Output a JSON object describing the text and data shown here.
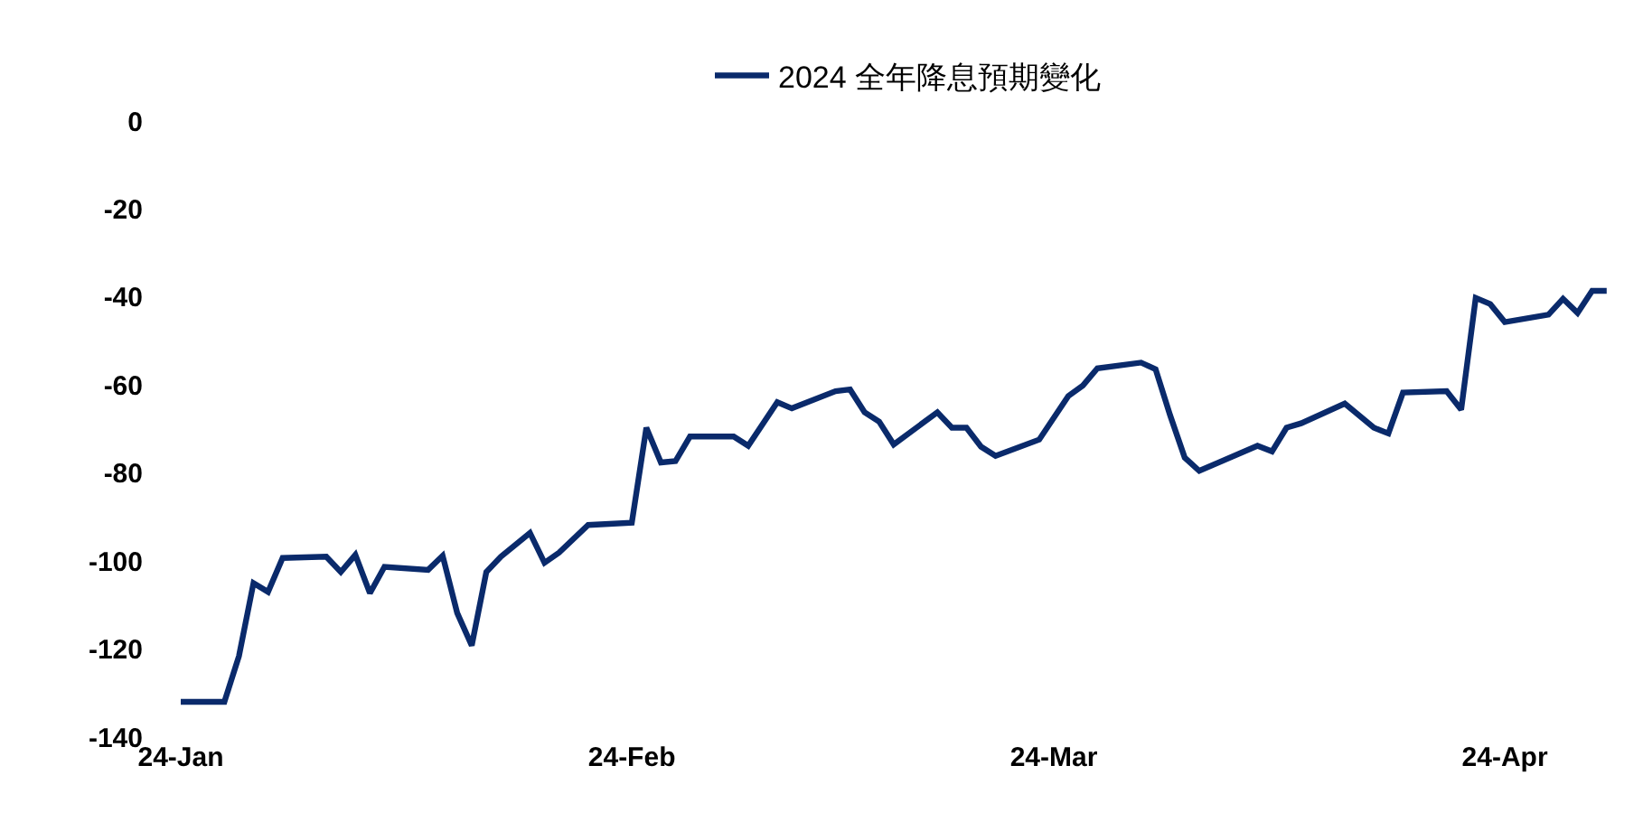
{
  "chart_data": {
    "type": "line",
    "x": [
      "2024-01-01",
      "2024-01-04",
      "2024-01-05",
      "2024-01-06",
      "2024-01-07",
      "2024-01-08",
      "2024-01-11",
      "2024-01-12",
      "2024-01-13",
      "2024-01-14",
      "2024-01-15",
      "2024-01-18",
      "2024-01-19",
      "2024-01-20",
      "2024-01-21",
      "2024-01-22",
      "2024-01-23",
      "2024-01-25",
      "2024-01-26",
      "2024-01-27",
      "2024-01-29",
      "2024-02-01",
      "2024-02-02",
      "2024-02-03",
      "2024-02-04",
      "2024-02-05",
      "2024-02-08",
      "2024-02-09",
      "2024-02-11",
      "2024-02-12",
      "2024-02-15",
      "2024-02-16",
      "2024-02-17",
      "2024-02-18",
      "2024-02-19",
      "2024-02-22",
      "2024-02-23",
      "2024-02-24",
      "2024-02-25",
      "2024-02-26",
      "2024-02-29",
      "2024-03-02",
      "2024-03-03",
      "2024-03-04",
      "2024-03-07",
      "2024-03-08",
      "2024-03-09",
      "2024-03-10",
      "2024-03-11",
      "2024-03-15",
      "2024-03-16",
      "2024-03-17",
      "2024-03-18",
      "2024-03-21",
      "2024-03-23",
      "2024-03-24",
      "2024-03-25",
      "2024-03-28",
      "2024-03-29",
      "2024-03-30",
      "2024-03-31",
      "2024-04-01",
      "2024-04-04",
      "2024-04-05",
      "2024-04-06",
      "2024-04-07",
      "2024-04-08"
    ],
    "series": [
      {
        "name": "2024 全年降息預期變化",
        "color": "#0a2a6b",
        "values": [
          -132,
          -132,
          -121.6,
          -105,
          -107,
          -99.3,
          -99,
          -102.5,
          -98.6,
          -107.3,
          -101.3,
          -102,
          -98.8,
          -111.8,
          -119.2,
          -102.5,
          -99,
          -93.6,
          -100.4,
          -98.1,
          -91.8,
          -91.3,
          -69.7,
          -77.6,
          -77.3,
          -71.7,
          -71.7,
          -73.8,
          -63.9,
          -65.3,
          -61.4,
          -61,
          -66.2,
          -68.3,
          -73.5,
          -66.2,
          -69.7,
          -69.7,
          -74,
          -76.1,
          -72.4,
          -62.5,
          -60.1,
          -56.2,
          -54.9,
          -56.4,
          -66.9,
          -76.5,
          -79.5,
          -73.8,
          -75.1,
          -69.7,
          -68.7,
          -64.2,
          -69.7,
          -71,
          -61.7,
          -61.4,
          -65.6,
          -40.2,
          -41.6,
          -45.7,
          -44,
          -40.4,
          -43.6,
          -38.6,
          -38.6
        ]
      }
    ],
    "xlim": [
      "2024-01-01",
      "2024-04-10"
    ],
    "xticks": [
      {
        "value": "2024-01-01",
        "label": "24-Jan"
      },
      {
        "value": "2024-02-01",
        "label": "24-Feb"
      },
      {
        "value": "2024-03-01",
        "label": "24-Mar"
      },
      {
        "value": "2024-04-01",
        "label": "24-Apr"
      }
    ],
    "ylim": [
      -140,
      0
    ],
    "yticks": [
      -140,
      -120,
      -100,
      -80,
      -60,
      -40,
      -20,
      0
    ],
    "grid": false,
    "legend": "top",
    "marker": "none",
    "line_style": "solid"
  }
}
